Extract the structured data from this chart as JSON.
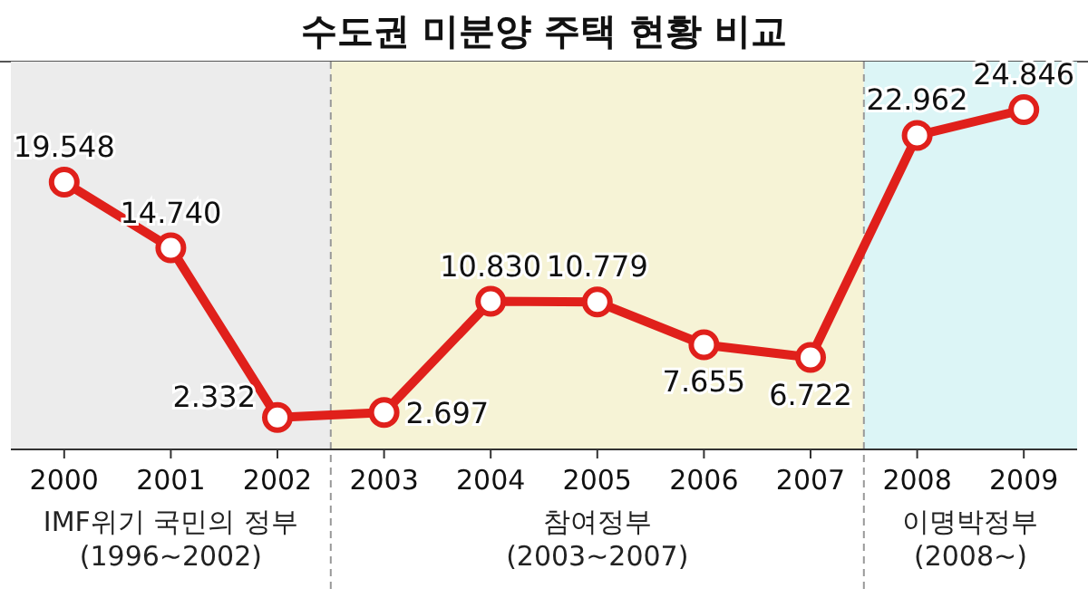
{
  "chart_data": {
    "type": "line",
    "title": "수도권 미분양 주택 현황 비교",
    "categories": [
      "2000",
      "2001",
      "2002",
      "2003",
      "2004",
      "2005",
      "2006",
      "2007",
      "2008",
      "2009"
    ],
    "values": [
      19.548,
      14.74,
      2.332,
      2.697,
      10.83,
      10.779,
      7.655,
      6.722,
      22.962,
      24.846
    ],
    "value_labels": [
      "19.548",
      "14.740",
      "2.332",
      "2.697",
      "10.830",
      "10.779",
      "7.655",
      "6.722",
      "22.962",
      "24.846"
    ],
    "color": "#e0201b",
    "marker": "circle",
    "line_style": "solid",
    "bands": [
      {
        "axis": "x",
        "from": "2000",
        "to": "2002",
        "label": "IMF위기 국민의 정부\n(1996~2002)",
        "color": "#ececec"
      },
      {
        "axis": "x",
        "from": "2003",
        "to": "2007",
        "label": "참여정부\n(2003~2007)",
        "color": "#f6f3d6"
      },
      {
        "axis": "x",
        "from": "2008",
        "to": "2009",
        "label": "이명박정부\n(2008~)",
        "color": "#dcf5f6"
      }
    ]
  }
}
